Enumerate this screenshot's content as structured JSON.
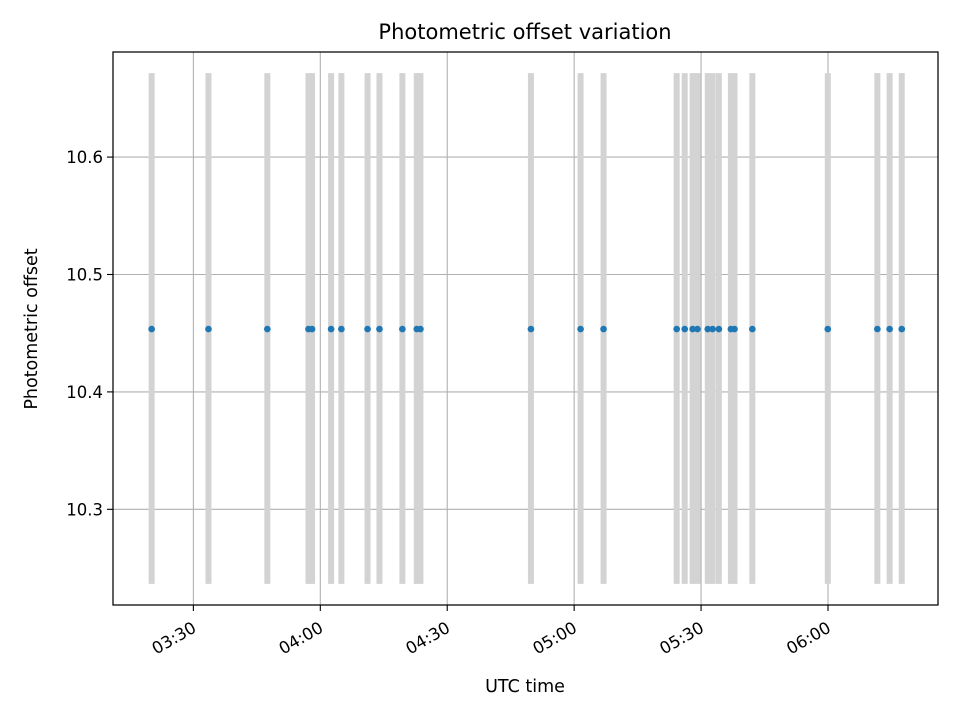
{
  "chart_data": {
    "type": "scatter",
    "title": "Photometric offset variation",
    "xlabel": "UTC time",
    "ylabel": "Photometric offset",
    "x_format": "HH:MM",
    "xlim": [
      "03:11:00",
      "06:26:00"
    ],
    "ylim": [
      10.2185,
      10.6895
    ],
    "grid": true,
    "x_ticks": [
      "03:30",
      "04:00",
      "04:30",
      "05:00",
      "05:30",
      "06:00"
    ],
    "y_ticks": [
      10.3,
      10.4,
      10.5,
      10.6
    ],
    "band_range": [
      10.2365,
      10.6715
    ],
    "band_color": "#d3d3d3",
    "point_color": "#1f77b4",
    "grid_color": "#b0b0b0",
    "points": [
      {
        "x": "03:20:08",
        "y": 10.4535
      },
      {
        "x": "03:33:34",
        "y": 10.4535
      },
      {
        "x": "03:47:29",
        "y": 10.4535
      },
      {
        "x": "03:57:12",
        "y": 10.4535
      },
      {
        "x": "03:58:03",
        "y": 10.4535
      },
      {
        "x": "04:02:33",
        "y": 10.4535
      },
      {
        "x": "04:04:59",
        "y": 10.4535
      },
      {
        "x": "04:11:10",
        "y": 10.4535
      },
      {
        "x": "04:13:59",
        "y": 10.4535
      },
      {
        "x": "04:19:24",
        "y": 10.4535
      },
      {
        "x": "04:22:48",
        "y": 10.4535
      },
      {
        "x": "04:23:40",
        "y": 10.4535
      },
      {
        "x": "04:49:47",
        "y": 10.4535
      },
      {
        "x": "05:01:31",
        "y": 10.4535
      },
      {
        "x": "05:06:57",
        "y": 10.4535
      },
      {
        "x": "05:24:14",
        "y": 10.4535
      },
      {
        "x": "05:26:08",
        "y": 10.4535
      },
      {
        "x": "05:28:00",
        "y": 10.4535
      },
      {
        "x": "05:29:08",
        "y": 10.4535
      },
      {
        "x": "05:31:35",
        "y": 10.4535
      },
      {
        "x": "05:32:43",
        "y": 10.4535
      },
      {
        "x": "05:34:12",
        "y": 10.4535
      },
      {
        "x": "05:37:03",
        "y": 10.4535
      },
      {
        "x": "05:37:54",
        "y": 10.4535
      },
      {
        "x": "05:42:07",
        "y": 10.4535
      },
      {
        "x": "05:59:57",
        "y": 10.4535
      },
      {
        "x": "06:11:40",
        "y": 10.4535
      },
      {
        "x": "06:14:34",
        "y": 10.4535
      },
      {
        "x": "06:17:26",
        "y": 10.4535
      }
    ]
  }
}
